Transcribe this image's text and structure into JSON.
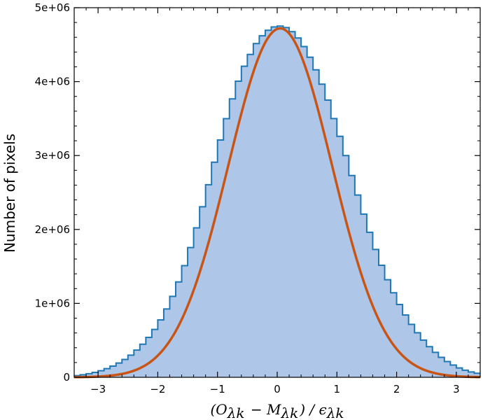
{
  "chart_data": {
    "type": "bar",
    "title": "",
    "xlabel": "(O_{\\lambda k} - M_{\\lambda k}) / \\epsilon_{\\lambda k}",
    "ylabel": "Number of pixels",
    "xlim": [
      -3.4,
      3.4
    ],
    "ylim": [
      0,
      5000000
    ],
    "x_ticks": [
      -3,
      -2,
      -1,
      0,
      1,
      2,
      3
    ],
    "x_tick_labels": [
      "−3",
      "−2",
      "−1",
      "0",
      "1",
      "2",
      "3"
    ],
    "y_ticks": [
      0,
      1000000,
      2000000,
      3000000,
      4000000,
      5000000
    ],
    "y_tick_labels": [
      "0",
      "1e+06",
      "2e+06",
      "3e+06",
      "4e+06",
      "5e+06"
    ],
    "grid": false,
    "histogram": {
      "bin_width": 0.1,
      "bin_centers": [
        -3.35,
        -3.25,
        -3.15,
        -3.05,
        -2.95,
        -2.85,
        -2.75,
        -2.65,
        -2.55,
        -2.45,
        -2.35,
        -2.25,
        -2.15,
        -2.05,
        -1.95,
        -1.85,
        -1.75,
        -1.65,
        -1.55,
        -1.45,
        -1.35,
        -1.25,
        -1.15,
        -1.05,
        -0.95,
        -0.85,
        -0.75,
        -0.65,
        -0.55,
        -0.45,
        -0.35,
        -0.25,
        -0.15,
        -0.05,
        0.05,
        0.15,
        0.25,
        0.35,
        0.45,
        0.55,
        0.65,
        0.75,
        0.85,
        0.95,
        1.05,
        1.15,
        1.25,
        1.35,
        1.45,
        1.55,
        1.65,
        1.75,
        1.85,
        1.95,
        2.05,
        2.15,
        2.25,
        2.35,
        2.45,
        2.55,
        2.65,
        2.75,
        2.85,
        2.95,
        3.05,
        3.15,
        3.25,
        3.35
      ],
      "counts": [
        23000,
        34000,
        48000,
        66000,
        89000,
        117000,
        152000,
        193000,
        242000,
        300000,
        368000,
        447000,
        540000,
        648000,
        776000,
        924000,
        1095000,
        1290000,
        1510000,
        1755000,
        2022000,
        2307000,
        2605000,
        2909000,
        3210000,
        3499000,
        3767000,
        4006000,
        4208000,
        4368000,
        4515000,
        4620000,
        4695000,
        4740000,
        4752000,
        4731000,
        4676000,
        4590000,
        4474000,
        4330000,
        4160000,
        3965000,
        3750000,
        3500000,
        3260000,
        3000000,
        2730000,
        2466000,
        2208000,
        1961000,
        1729000,
        1515000,
        1320000,
        1144000,
        985000,
        843000,
        716000,
        603000,
        503000,
        414000,
        337000,
        270000,
        213000,
        166000,
        127000,
        96000,
        72000,
        54000
      ],
      "fill_color": "#aec7e8",
      "edge_color": "#1f77b4"
    },
    "series": [
      {
        "type": "gaussian_fit",
        "amplitude": 4720000,
        "mean": 0.05,
        "sigma": 0.87,
        "color": "#c85516"
      }
    ]
  }
}
